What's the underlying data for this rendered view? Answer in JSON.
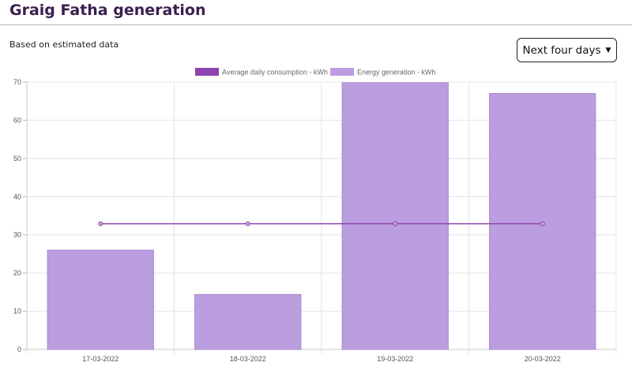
{
  "page": {
    "title": "Graig Fatha generation",
    "subtitle": "Based on estimated data",
    "period_select": {
      "selected": "Next four days"
    }
  },
  "chart_data": {
    "type": "bar",
    "categories": [
      "17-03-2022",
      "18-03-2022",
      "19-03-2022",
      "20-03-2022"
    ],
    "series": [
      {
        "name": "Average daily consumption - kWh",
        "type": "line",
        "color": "#8e44ad",
        "values": [
          32.9,
          32.9,
          32.9,
          32.9
        ]
      },
      {
        "name": "Energy generation - kWh",
        "type": "bar",
        "color": "#bb9edf",
        "values": [
          26,
          14.4,
          69.8,
          67
        ]
      }
    ],
    "ylim": [
      0,
      70
    ],
    "yticks": [
      0,
      10,
      20,
      30,
      40,
      50,
      60,
      70
    ],
    "grid": true,
    "legend": "top-center",
    "title": "",
    "xlabel": "",
    "ylabel": ""
  }
}
